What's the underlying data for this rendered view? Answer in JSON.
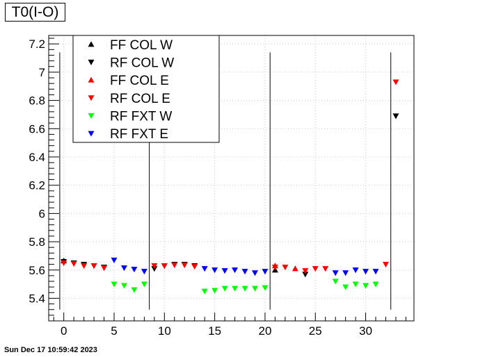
{
  "title": "T0(I-O)",
  "timestamp": "Sun Dec 17 10:59:42 2023",
  "chart_data": {
    "type": "scatter",
    "title": "T0(I-O)",
    "xlabel": "",
    "ylabel": "",
    "xlim": [
      -1.5,
      34.8
    ],
    "ylim": [
      5.24,
      7.26
    ],
    "x_ticks": [
      0,
      5,
      10,
      15,
      20,
      25,
      30
    ],
    "y_ticks": [
      5.4,
      5.6,
      5.8,
      6,
      6.2,
      6.4,
      6.6,
      6.8,
      7,
      7.2
    ],
    "x_tick_labels": [
      "0",
      "5",
      "10",
      "15",
      "20",
      "25",
      "30"
    ],
    "y_tick_labels": [
      "5.4",
      "5.6",
      "5.8",
      "6",
      "6.2",
      "6.4",
      "6.6",
      "6.8",
      "7",
      "7.2"
    ],
    "grid": true,
    "legend_position": "top-left",
    "vertical_lines": [
      {
        "x": -0.4,
        "y_from": 5.32,
        "y_to": 7.14
      },
      {
        "x": 8.5,
        "y_from": 5.32,
        "y_to": 7.14
      },
      {
        "x": 20.5,
        "y_from": 5.32,
        "y_to": 7.14
      },
      {
        "x": 32.5,
        "y_from": 5.32,
        "y_to": 7.14
      }
    ],
    "series": [
      {
        "name": "FF COL W",
        "color": "#000000",
        "marker": "triangle-up",
        "x": [
          0,
          21
        ],
        "y": [
          5.665,
          5.6
        ]
      },
      {
        "name": "RF COL W",
        "color": "#000000",
        "marker": "triangle-down",
        "x": [
          0,
          1,
          2,
          3,
          4,
          9,
          10,
          11,
          12,
          13,
          24,
          33
        ],
        "y": [
          5.66,
          5.65,
          5.64,
          5.63,
          5.62,
          5.61,
          5.63,
          5.64,
          5.64,
          5.63,
          5.57,
          6.69
        ]
      },
      {
        "name": "FF COL E",
        "color": "#ff0000",
        "marker": "triangle-up",
        "x": [
          21,
          23
        ],
        "y": [
          5.63,
          5.61
        ]
      },
      {
        "name": "RF COL E",
        "color": "#ff0000",
        "marker": "triangle-down",
        "x": [
          0,
          1,
          2,
          3,
          4,
          9,
          10,
          11,
          12,
          13,
          21,
          22,
          24,
          25,
          26,
          32,
          33
        ],
        "y": [
          5.65,
          5.645,
          5.63,
          5.63,
          5.615,
          5.63,
          5.63,
          5.635,
          5.635,
          5.625,
          5.62,
          5.62,
          5.595,
          5.61,
          5.61,
          5.64,
          6.93
        ]
      },
      {
        "name": "RF FXT W",
        "color": "#00ff00",
        "marker": "triangle-down",
        "x": [
          5,
          6,
          7,
          8,
          14,
          15,
          16,
          17,
          18,
          19,
          20,
          27,
          28,
          29,
          30,
          31
        ],
        "y": [
          5.5,
          5.49,
          5.46,
          5.5,
          5.45,
          5.455,
          5.47,
          5.47,
          5.47,
          5.47,
          5.475,
          5.52,
          5.48,
          5.5,
          5.49,
          5.5
        ]
      },
      {
        "name": "RF FXT E",
        "color": "#0000ff",
        "marker": "triangle-down",
        "x": [
          5,
          6,
          7,
          8,
          14,
          15,
          16,
          17,
          18,
          19,
          20,
          27,
          28,
          29,
          30,
          31
        ],
        "y": [
          5.67,
          5.615,
          5.605,
          5.59,
          5.61,
          5.6,
          5.595,
          5.6,
          5.59,
          5.58,
          5.59,
          5.58,
          5.58,
          5.6,
          5.59,
          5.59
        ]
      }
    ]
  }
}
